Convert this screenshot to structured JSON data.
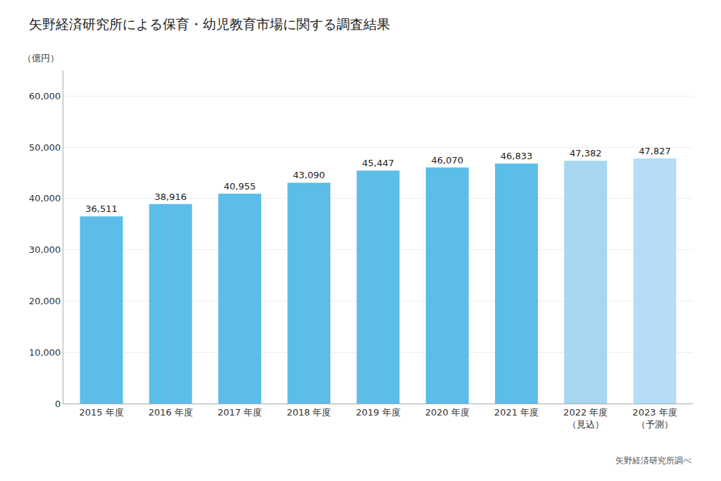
{
  "chart_data": {
    "type": "bar",
    "title": "矢野経済研究所による保育・幼児教育市場に関する調査結果",
    "ylabel": "（億円）",
    "annotations": [
      "矢野経済研究所調べ"
    ],
    "categories": [
      "2015 年度",
      "2016 年度",
      "2017 年度",
      "2018 年度",
      "2019 年度",
      "2020 年度",
      "2021 年度",
      "2022 年度\n（見込）",
      "2023 年度\n（予測）"
    ],
    "values": [
      36511,
      38916,
      40955,
      43090,
      45447,
      46070,
      46833,
      47382,
      47827
    ],
    "value_labels": [
      "36,511",
      "38,916",
      "40,955",
      "43,090",
      "45,447",
      "46,070",
      "46,833",
      "47,382",
      "47,827"
    ],
    "data_labels": true,
    "colors": [
      "#5bbde8",
      "#5bbde8",
      "#5bbde8",
      "#5bbde8",
      "#5bbde8",
      "#5bbde8",
      "#5bbde8",
      "#a8d5f0",
      "#b5ddf5"
    ],
    "ylim": [
      0,
      65000
    ],
    "yticks": [
      0,
      {
        "value": 10000,
        "label": "10,000"
      },
      {
        "value": 20000,
        "label": "20,000"
      },
      {
        "value": 30000,
        "label": "30,000"
      },
      {
        "value": 40000,
        "label": "40,000"
      },
      {
        "value": 50000,
        "label": "50,000"
      },
      {
        "value": 60000,
        "label": "60,000"
      }
    ],
    "grid": true
  }
}
